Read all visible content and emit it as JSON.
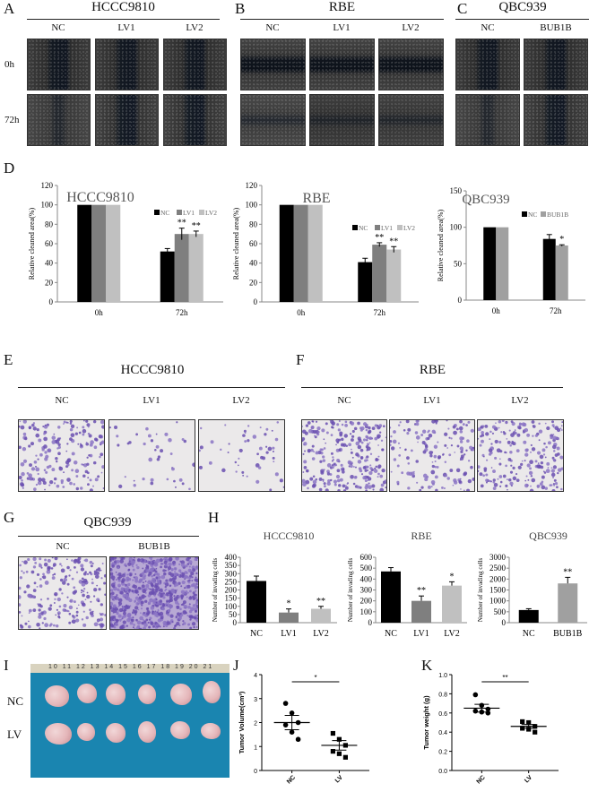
{
  "panels": {
    "A": {
      "label": "A",
      "title": "HCCC9810",
      "columns": [
        "NC",
        "LV1",
        "LV2"
      ]
    },
    "B": {
      "label": "B",
      "title": "RBE",
      "columns": [
        "NC",
        "LV1",
        "LV2"
      ]
    },
    "C": {
      "label": "C",
      "title": "QBC939",
      "columns": [
        "NC",
        "BUB1B"
      ]
    },
    "rows": [
      "0h",
      "72h"
    ],
    "D": {
      "label": "D"
    },
    "E": {
      "label": "E",
      "title": "HCCC9810",
      "columns": [
        "NC",
        "LV1",
        "LV2"
      ]
    },
    "F": {
      "label": "F",
      "title": "RBE",
      "columns": [
        "NC",
        "LV1",
        "LV2"
      ]
    },
    "G": {
      "label": "G",
      "title": "QBC939",
      "columns": [
        "NC",
        "BUB1B"
      ]
    },
    "H": {
      "label": "H"
    },
    "I": {
      "label": "I",
      "rows": [
        "NC",
        "LV"
      ],
      "ruler": "10 11 12 13 14 15 16 17 18 19 20 21"
    },
    "J": {
      "label": "J"
    },
    "K": {
      "label": "K"
    }
  },
  "chart_data": [
    {
      "id": "D1",
      "type": "bar",
      "title": "HCCC9810",
      "ylabel": "Relative cleaned area(%)",
      "categories": [
        "0h",
        "72h"
      ],
      "ylim": [
        0,
        120
      ],
      "yticks": [
        0,
        20,
        40,
        60,
        80,
        100,
        120
      ],
      "legend_position": "top-right",
      "colors": [
        "#000000",
        "#7f7f7f",
        "#c0c0c0"
      ],
      "series": [
        {
          "name": "NC",
          "values": [
            100,
            52
          ]
        },
        {
          "name": "LV1",
          "values": [
            100,
            70
          ]
        },
        {
          "name": "LV2",
          "values": [
            100,
            70
          ]
        }
      ],
      "errors": [
        [
          0,
          3
        ],
        [
          0,
          6
        ],
        [
          0,
          3
        ]
      ],
      "annotations": [
        [
          "",
          ""
        ],
        [
          "",
          "**"
        ],
        [
          "",
          "**"
        ]
      ]
    },
    {
      "id": "D2",
      "type": "bar",
      "title": "RBE",
      "ylabel": "Relative cleaned area(%)",
      "categories": [
        "0h",
        "72h"
      ],
      "ylim": [
        0,
        120
      ],
      "yticks": [
        0,
        20,
        40,
        60,
        80,
        100,
        120
      ],
      "legend_position": "right",
      "colors": [
        "#000000",
        "#7f7f7f",
        "#c0c0c0"
      ],
      "series": [
        {
          "name": "NC",
          "values": [
            100,
            41
          ]
        },
        {
          "name": "LV1",
          "values": [
            100,
            59
          ]
        },
        {
          "name": "LV2",
          "values": [
            100,
            54
          ]
        }
      ],
      "errors": [
        [
          0,
          4
        ],
        [
          0,
          2
        ],
        [
          0,
          3
        ]
      ],
      "annotations": [
        [
          "",
          ""
        ],
        [
          "",
          "**"
        ],
        [
          "",
          "**"
        ]
      ]
    },
    {
      "id": "D3",
      "type": "bar",
      "title": "QBC939",
      "ylabel": "Relative cleaned area(%)",
      "categories": [
        "0h",
        "72h"
      ],
      "ylim": [
        0,
        150
      ],
      "yticks": [
        0,
        50,
        100,
        150
      ],
      "legend_position": "top-right",
      "colors": [
        "#000000",
        "#a0a0a0"
      ],
      "series": [
        {
          "name": "NC",
          "values": [
            100,
            84
          ]
        },
        {
          "name": "BUB1B",
          "values": [
            100,
            75
          ]
        }
      ],
      "errors": [
        [
          0,
          6
        ],
        [
          0,
          1
        ]
      ],
      "annotations": [
        [
          "",
          ""
        ],
        [
          "",
          "*"
        ]
      ]
    },
    {
      "id": "H1",
      "type": "bar",
      "title": "HCCC9810",
      "ylabel": "Number of invading cells",
      "categories": [
        "NC",
        "LV1",
        "LV2"
      ],
      "ylim": [
        0,
        400
      ],
      "yticks": [
        0,
        50,
        100,
        150,
        200,
        250,
        300,
        350,
        400
      ],
      "colors": [
        "#000000",
        "#7f7f7f",
        "#c0c0c0"
      ],
      "values": [
        255,
        62,
        85
      ],
      "errors": [
        30,
        22,
        15
      ],
      "annotations": [
        "",
        "*",
        "**"
      ]
    },
    {
      "id": "H2",
      "type": "bar",
      "title": "RBE",
      "ylabel": "Number of invading cells",
      "categories": [
        "NC",
        "LV1",
        "LV2"
      ],
      "ylim": [
        0,
        600
      ],
      "yticks": [
        0,
        100,
        200,
        300,
        400,
        500,
        600
      ],
      "colors": [
        "#000000",
        "#7f7f7f",
        "#c0c0c0"
      ],
      "values": [
        470,
        200,
        340
      ],
      "errors": [
        35,
        45,
        35
      ],
      "annotations": [
        "",
        "**",
        "*"
      ]
    },
    {
      "id": "H3",
      "type": "bar",
      "title": "QBC939",
      "ylabel": "Number of invading cells",
      "categories": [
        "NC",
        "BUB1B"
      ],
      "ylim": [
        0,
        3000
      ],
      "yticks": [
        0,
        500,
        1000,
        1500,
        2000,
        2500,
        3000
      ],
      "colors": [
        "#000000",
        "#a0a0a0"
      ],
      "values": [
        580,
        1800
      ],
      "errors": [
        60,
        280
      ],
      "annotations": [
        "",
        "**"
      ]
    },
    {
      "id": "J",
      "type": "scatter",
      "ylabel": "Tumor Volume(cm³)",
      "categories": [
        "NC",
        "LV"
      ],
      "ylim": [
        0,
        4
      ],
      "yticks": [
        0,
        1,
        2,
        3,
        4
      ],
      "points": [
        [
          2.8,
          2.4,
          2.0,
          1.9,
          1.6,
          1.3
        ],
        [
          1.55,
          1.3,
          1.05,
          0.8,
          0.7,
          0.55
        ]
      ],
      "means": [
        2.0,
        1.05
      ],
      "sems": [
        0.3,
        0.2
      ],
      "significance": "*"
    },
    {
      "id": "K",
      "type": "scatter",
      "ylabel": "Tumor weight (g)",
      "categories": [
        "NC",
        "LV"
      ],
      "ylim": [
        0,
        1.0
      ],
      "yticks": [
        0.0,
        0.2,
        0.4,
        0.6,
        0.8,
        1.0
      ],
      "points": [
        [
          0.79,
          0.68,
          0.64,
          0.62,
          0.61,
          0.6
        ],
        [
          0.51,
          0.5,
          0.46,
          0.44,
          0.43,
          0.4
        ]
      ],
      "means": [
        0.65,
        0.46
      ],
      "sems": [
        0.04,
        0.02
      ],
      "significance": "**"
    }
  ]
}
